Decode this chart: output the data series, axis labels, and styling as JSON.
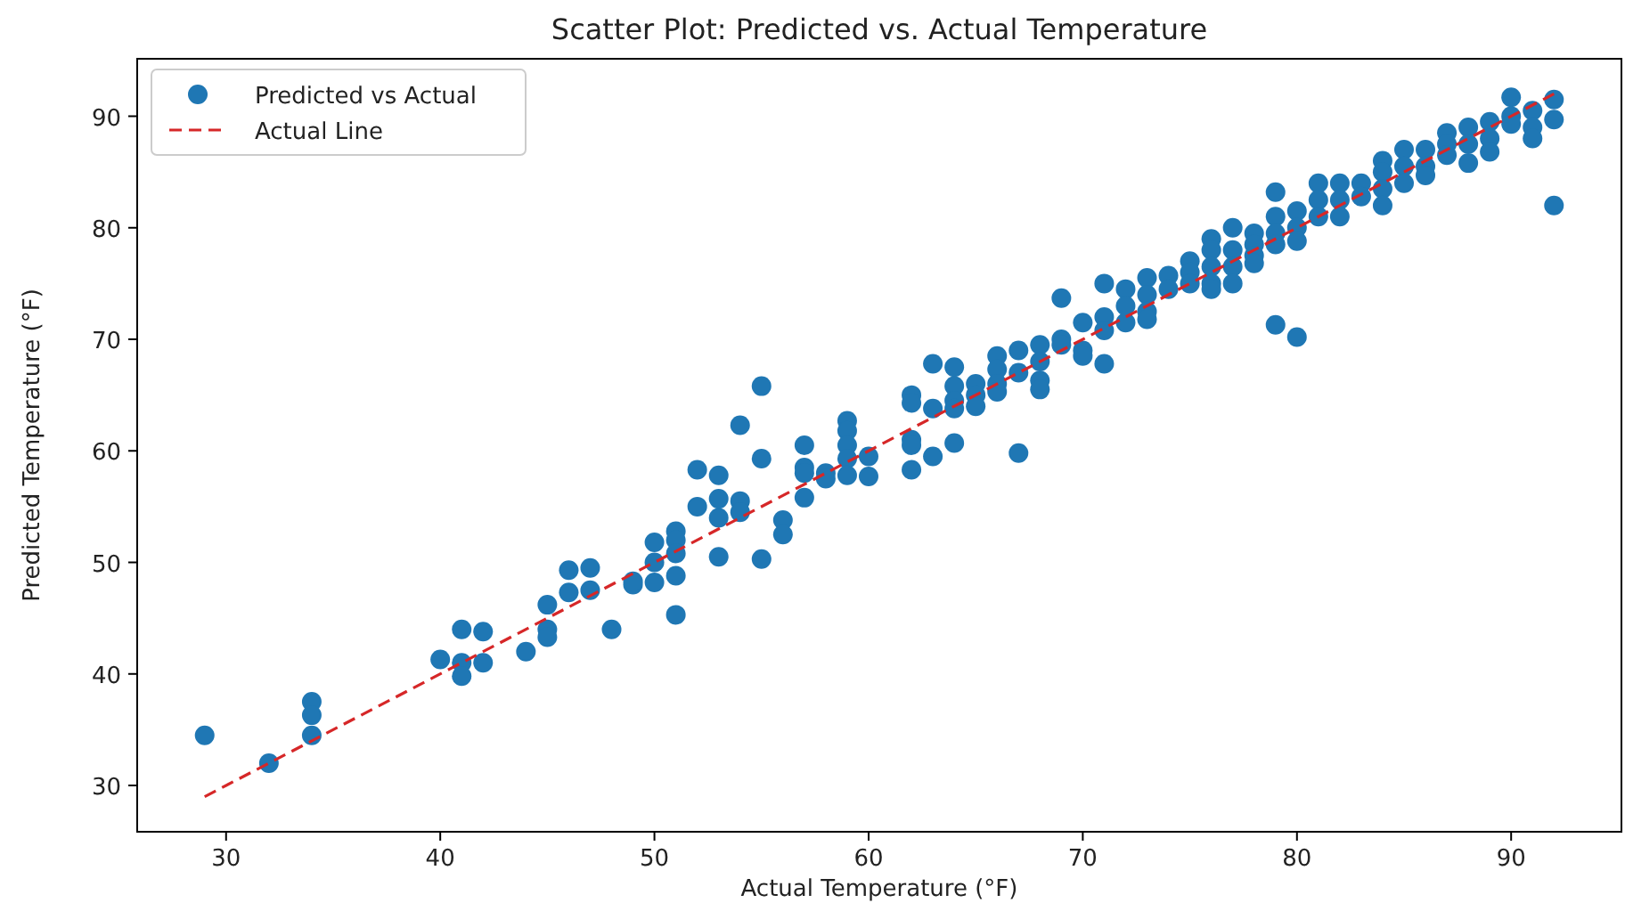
{
  "chart_data": {
    "type": "scatter",
    "title": "Scatter Plot: Predicted vs. Actual Temperature",
    "xlabel": "Actual Temperature (°F)",
    "ylabel": "Predicted Temperature (°F)",
    "xlim": [
      25.85,
      95.15
    ],
    "ylim": [
      25.85,
      95.15
    ],
    "xticks": [
      30,
      40,
      50,
      60,
      70,
      80,
      90
    ],
    "yticks": [
      30,
      40,
      50,
      60,
      70,
      80,
      90
    ],
    "legend": "top left",
    "marker": "circle",
    "series": [
      {
        "name": "Predicted vs Actual",
        "color": "#1f77b4",
        "x": [
          29,
          32,
          34,
          34,
          34,
          40,
          41,
          41,
          41,
          42,
          42,
          44,
          45,
          45,
          45,
          46,
          46,
          47,
          47,
          48,
          49,
          49,
          50,
          50,
          50,
          51,
          51,
          51,
          51,
          51,
          52,
          52,
          53,
          53,
          53,
          53,
          54,
          54,
          54,
          55,
          55,
          55,
          56,
          56,
          57,
          57,
          57,
          57,
          58,
          58,
          59,
          59,
          59,
          59,
          59,
          60,
          60,
          62,
          62,
          62,
          62,
          62,
          63,
          63,
          63,
          64,
          64,
          64,
          64,
          64,
          65,
          65,
          65,
          66,
          66,
          66,
          66,
          67,
          67,
          67,
          68,
          68,
          68,
          68,
          69,
          69,
          69,
          70,
          70,
          70,
          71,
          71,
          71,
          71,
          72,
          72,
          72,
          73,
          73,
          73,
          73,
          74,
          74,
          75,
          75,
          75,
          76,
          76,
          76,
          76,
          76,
          77,
          77,
          77,
          77,
          78,
          78,
          78,
          78,
          79,
          79,
          79,
          79,
          79,
          80,
          80,
          80,
          80,
          81,
          81,
          81,
          82,
          82,
          82,
          83,
          83,
          84,
          84,
          84,
          84,
          85,
          85,
          85,
          86,
          86,
          86,
          87,
          87,
          87,
          88,
          88,
          88,
          89,
          89,
          89,
          90,
          90,
          90,
          91,
          91,
          91,
          92,
          92,
          92
        ],
        "values": [
          34.5,
          32,
          37.5,
          36.3,
          34.5,
          41.3,
          44,
          41,
          39.8,
          43.8,
          41,
          42,
          46.2,
          44,
          43.3,
          49.3,
          47.3,
          49.5,
          47.5,
          44,
          48,
          48.3,
          51.8,
          50,
          48.2,
          52.8,
          52,
          50.8,
          48.8,
          45.3,
          58.3,
          55,
          57.8,
          55.7,
          54,
          50.5,
          62.3,
          55.5,
          54.5,
          65.8,
          59.3,
          50.3,
          53.8,
          52.5,
          60.5,
          58.5,
          58,
          55.8,
          58,
          57.5,
          62.7,
          61.8,
          60.5,
          59.3,
          57.8,
          59.5,
          57.7,
          65,
          64.3,
          61,
          60.5,
          58.3,
          67.8,
          63.8,
          59.5,
          67.5,
          65.8,
          64.5,
          63.8,
          60.7,
          66,
          65,
          64,
          68.5,
          67.3,
          66,
          65.3,
          69,
          67,
          59.8,
          69.5,
          68,
          66.3,
          65.5,
          73.7,
          70,
          69.5,
          71.5,
          69,
          68.5,
          75,
          72,
          70.8,
          67.8,
          74.5,
          73,
          71.5,
          75.5,
          74,
          72.5,
          71.8,
          75.7,
          74.5,
          77,
          76,
          75,
          79,
          78,
          76.5,
          75,
          74.5,
          80,
          78,
          76.5,
          75,
          79.5,
          78.5,
          77.5,
          76.8,
          83.2,
          81,
          79.5,
          78.5,
          71.3,
          81.5,
          80,
          78.8,
          70.2,
          84,
          82.5,
          81,
          84,
          82.5,
          81,
          84,
          82.8,
          86,
          85,
          83.5,
          82,
          87,
          85.5,
          84,
          87,
          85.5,
          84.7,
          88.5,
          87.5,
          86.5,
          89,
          87.5,
          85.8,
          89.5,
          88,
          86.8,
          91.7,
          90,
          89.3,
          90.5,
          89,
          88,
          91.5,
          89.7,
          82
        ]
      },
      {
        "name": "Actual Line",
        "type": "line",
        "color": "#d62728",
        "line_style": "dashed",
        "marker": "none",
        "x": [
          29,
          92
        ],
        "values": [
          29,
          92
        ]
      }
    ]
  }
}
